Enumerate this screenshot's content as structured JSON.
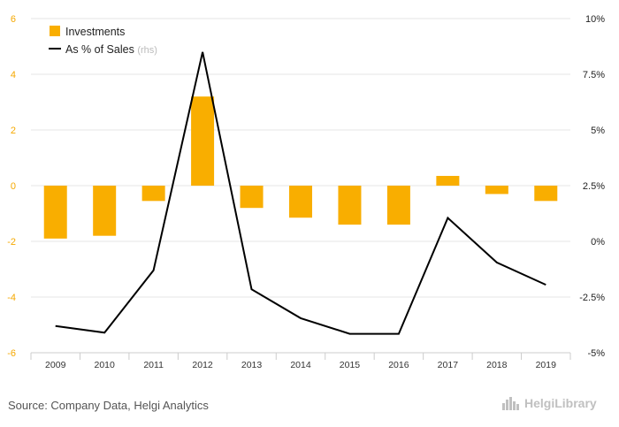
{
  "chart_data": {
    "type": "bar+line",
    "categories": [
      "2009",
      "2010",
      "2011",
      "2012",
      "2013",
      "2014",
      "2015",
      "2016",
      "2017",
      "2018",
      "2019"
    ],
    "series": [
      {
        "name": "Investments",
        "type": "bar",
        "axis": "left",
        "color": "#f9ae00",
        "values": [
          -1.9,
          -1.8,
          -0.55,
          3.2,
          -0.8,
          -1.15,
          -1.4,
          -1.4,
          0.35,
          -0.3,
          -0.55
        ]
      },
      {
        "name": "As % of Sales",
        "type": "line",
        "axis": "right",
        "color": "#000000",
        "values": [
          -3.8,
          -4.1,
          -1.3,
          8.5,
          -2.15,
          -3.45,
          -4.15,
          -4.15,
          1.05,
          -0.95,
          -1.95
        ]
      }
    ],
    "left_axis": {
      "min": -6,
      "max": 6,
      "ticks": [
        "6",
        "4",
        "2",
        "0",
        "-2",
        "-4",
        "-6"
      ],
      "tick_values": [
        6,
        4,
        2,
        0,
        -2,
        -4,
        -6
      ]
    },
    "right_axis": {
      "min": -5,
      "max": 10,
      "ticks": [
        "10%",
        "7.5%",
        "5%",
        "2.5%",
        "0%",
        "-2.5%",
        "-5%"
      ],
      "tick_values": [
        10,
        7.5,
        5,
        2.5,
        0,
        -2.5,
        -5
      ]
    },
    "legend": {
      "bar_label": "Investments",
      "line_label": "As % of Sales",
      "line_suffix": "(rhs)",
      "position": "top-left"
    },
    "grid": true
  },
  "footer": {
    "source": "Source: Company Data, Helgi Analytics",
    "brand": "HelgiLibrary",
    "brand_icon": "city-skyline-icon"
  }
}
